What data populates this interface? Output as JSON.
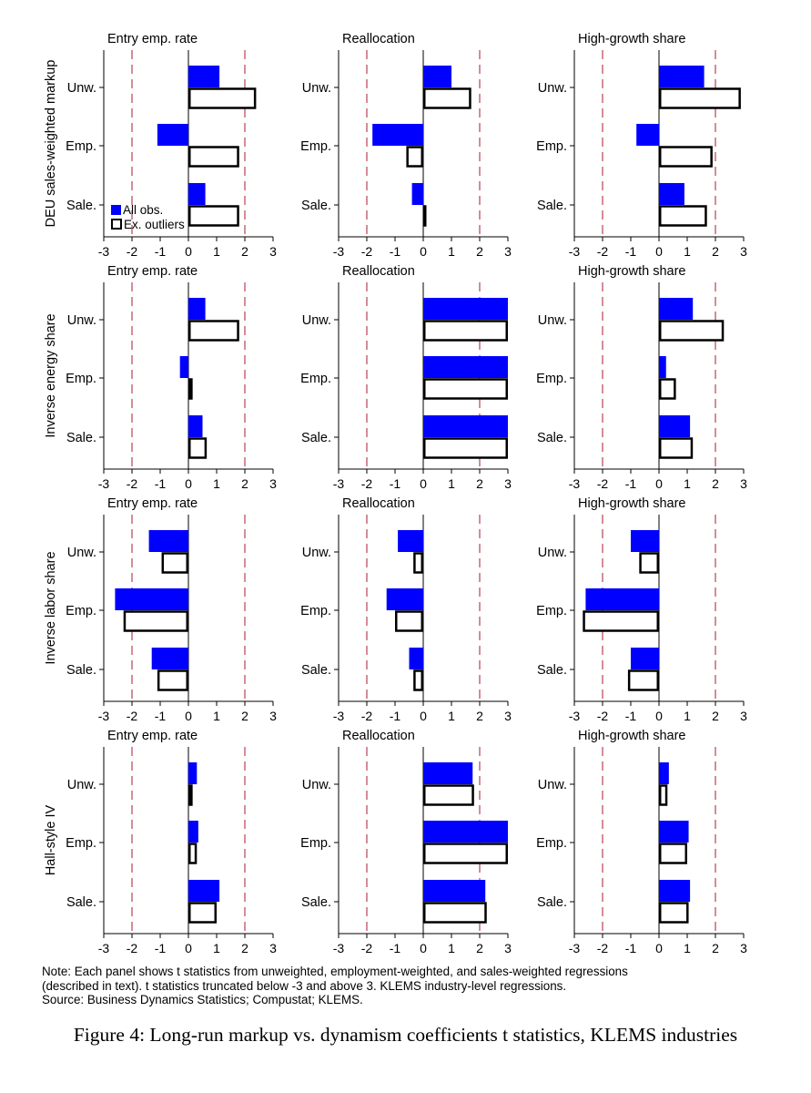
{
  "colors": {
    "all_obs": "#0000ff",
    "ex_outliers": "#ffffff",
    "reference_line": "#b03040"
  },
  "legend": {
    "all_obs": "All obs.",
    "ex_outliers": "Ex. outliers"
  },
  "chart_data": {
    "type": "bar",
    "orientation": "horizontal",
    "xlim": [
      -3,
      3
    ],
    "xticks": [
      -3,
      -2,
      -1,
      0,
      1,
      2,
      3
    ],
    "reference_lines": [
      -2,
      2
    ],
    "categories": [
      "Unw.",
      "Emp.",
      "Sale."
    ],
    "series_names": [
      "All obs.",
      "Ex. outliers"
    ],
    "rows": [
      {
        "ylabel": "DEU sales-weighted markup",
        "panels": [
          {
            "title": "Entry emp. rate",
            "all_obs": [
              1.1,
              -1.1,
              0.6
            ],
            "ex_outliers": [
              2.4,
              1.8,
              1.8
            ]
          },
          {
            "title": "Reallocation",
            "all_obs": [
              1.0,
              -1.8,
              -0.4
            ],
            "ex_outliers": [
              1.7,
              -0.6,
              0.1
            ]
          },
          {
            "title": "High-growth share",
            "all_obs": [
              1.6,
              -0.8,
              0.9
            ],
            "ex_outliers": [
              2.9,
              1.9,
              1.7
            ]
          }
        ]
      },
      {
        "ylabel": "Inverse energy share",
        "panels": [
          {
            "title": "Entry emp. rate",
            "all_obs": [
              0.6,
              -0.3,
              0.5
            ],
            "ex_outliers": [
              1.8,
              0.15,
              0.65
            ]
          },
          {
            "title": "Reallocation",
            "all_obs": [
              3.0,
              3.0,
              3.0
            ],
            "ex_outliers": [
              3.0,
              3.0,
              3.0
            ]
          },
          {
            "title": "High-growth share",
            "all_obs": [
              1.2,
              0.25,
              1.1
            ],
            "ex_outliers": [
              2.3,
              0.6,
              1.2
            ]
          }
        ]
      },
      {
        "ylabel": "Inverse labor share",
        "panels": [
          {
            "title": "Entry emp. rate",
            "all_obs": [
              -1.4,
              -2.6,
              -1.3
            ],
            "ex_outliers": [
              -0.95,
              -2.3,
              -1.1
            ]
          },
          {
            "title": "Reallocation",
            "all_obs": [
              -0.9,
              -1.3,
              -0.5
            ],
            "ex_outliers": [
              -0.35,
              -1.0,
              -0.35
            ]
          },
          {
            "title": "High-growth share",
            "all_obs": [
              -1.0,
              -2.6,
              -1.0
            ],
            "ex_outliers": [
              -0.7,
              -2.7,
              -1.1
            ]
          }
        ]
      },
      {
        "ylabel": "Hall-style IV",
        "panels": [
          {
            "title": "Entry emp. rate",
            "all_obs": [
              0.3,
              0.35,
              1.1
            ],
            "ex_outliers": [
              0.15,
              0.3,
              1.0
            ]
          },
          {
            "title": "Reallocation",
            "all_obs": [
              1.75,
              3.0,
              2.2
            ],
            "ex_outliers": [
              1.8,
              3.0,
              2.25
            ]
          },
          {
            "title": "High-growth share",
            "all_obs": [
              0.35,
              1.05,
              1.1
            ],
            "ex_outliers": [
              0.3,
              1.0,
              1.05
            ]
          }
        ]
      }
    ]
  },
  "note": {
    "line1": "Note: Each panel shows t statistics from unweighted, employment-weighted, and sales-weighted regressions",
    "line2": "(described in text). t statistics truncated below -3 and above 3. KLEMS industry-level regressions.",
    "line3": "Source: Business Dynamics Statistics; Compustat; KLEMS."
  },
  "caption": "Figure 4: Long-run markup vs. dynamism coefficients t statistics, KLEMS industries"
}
